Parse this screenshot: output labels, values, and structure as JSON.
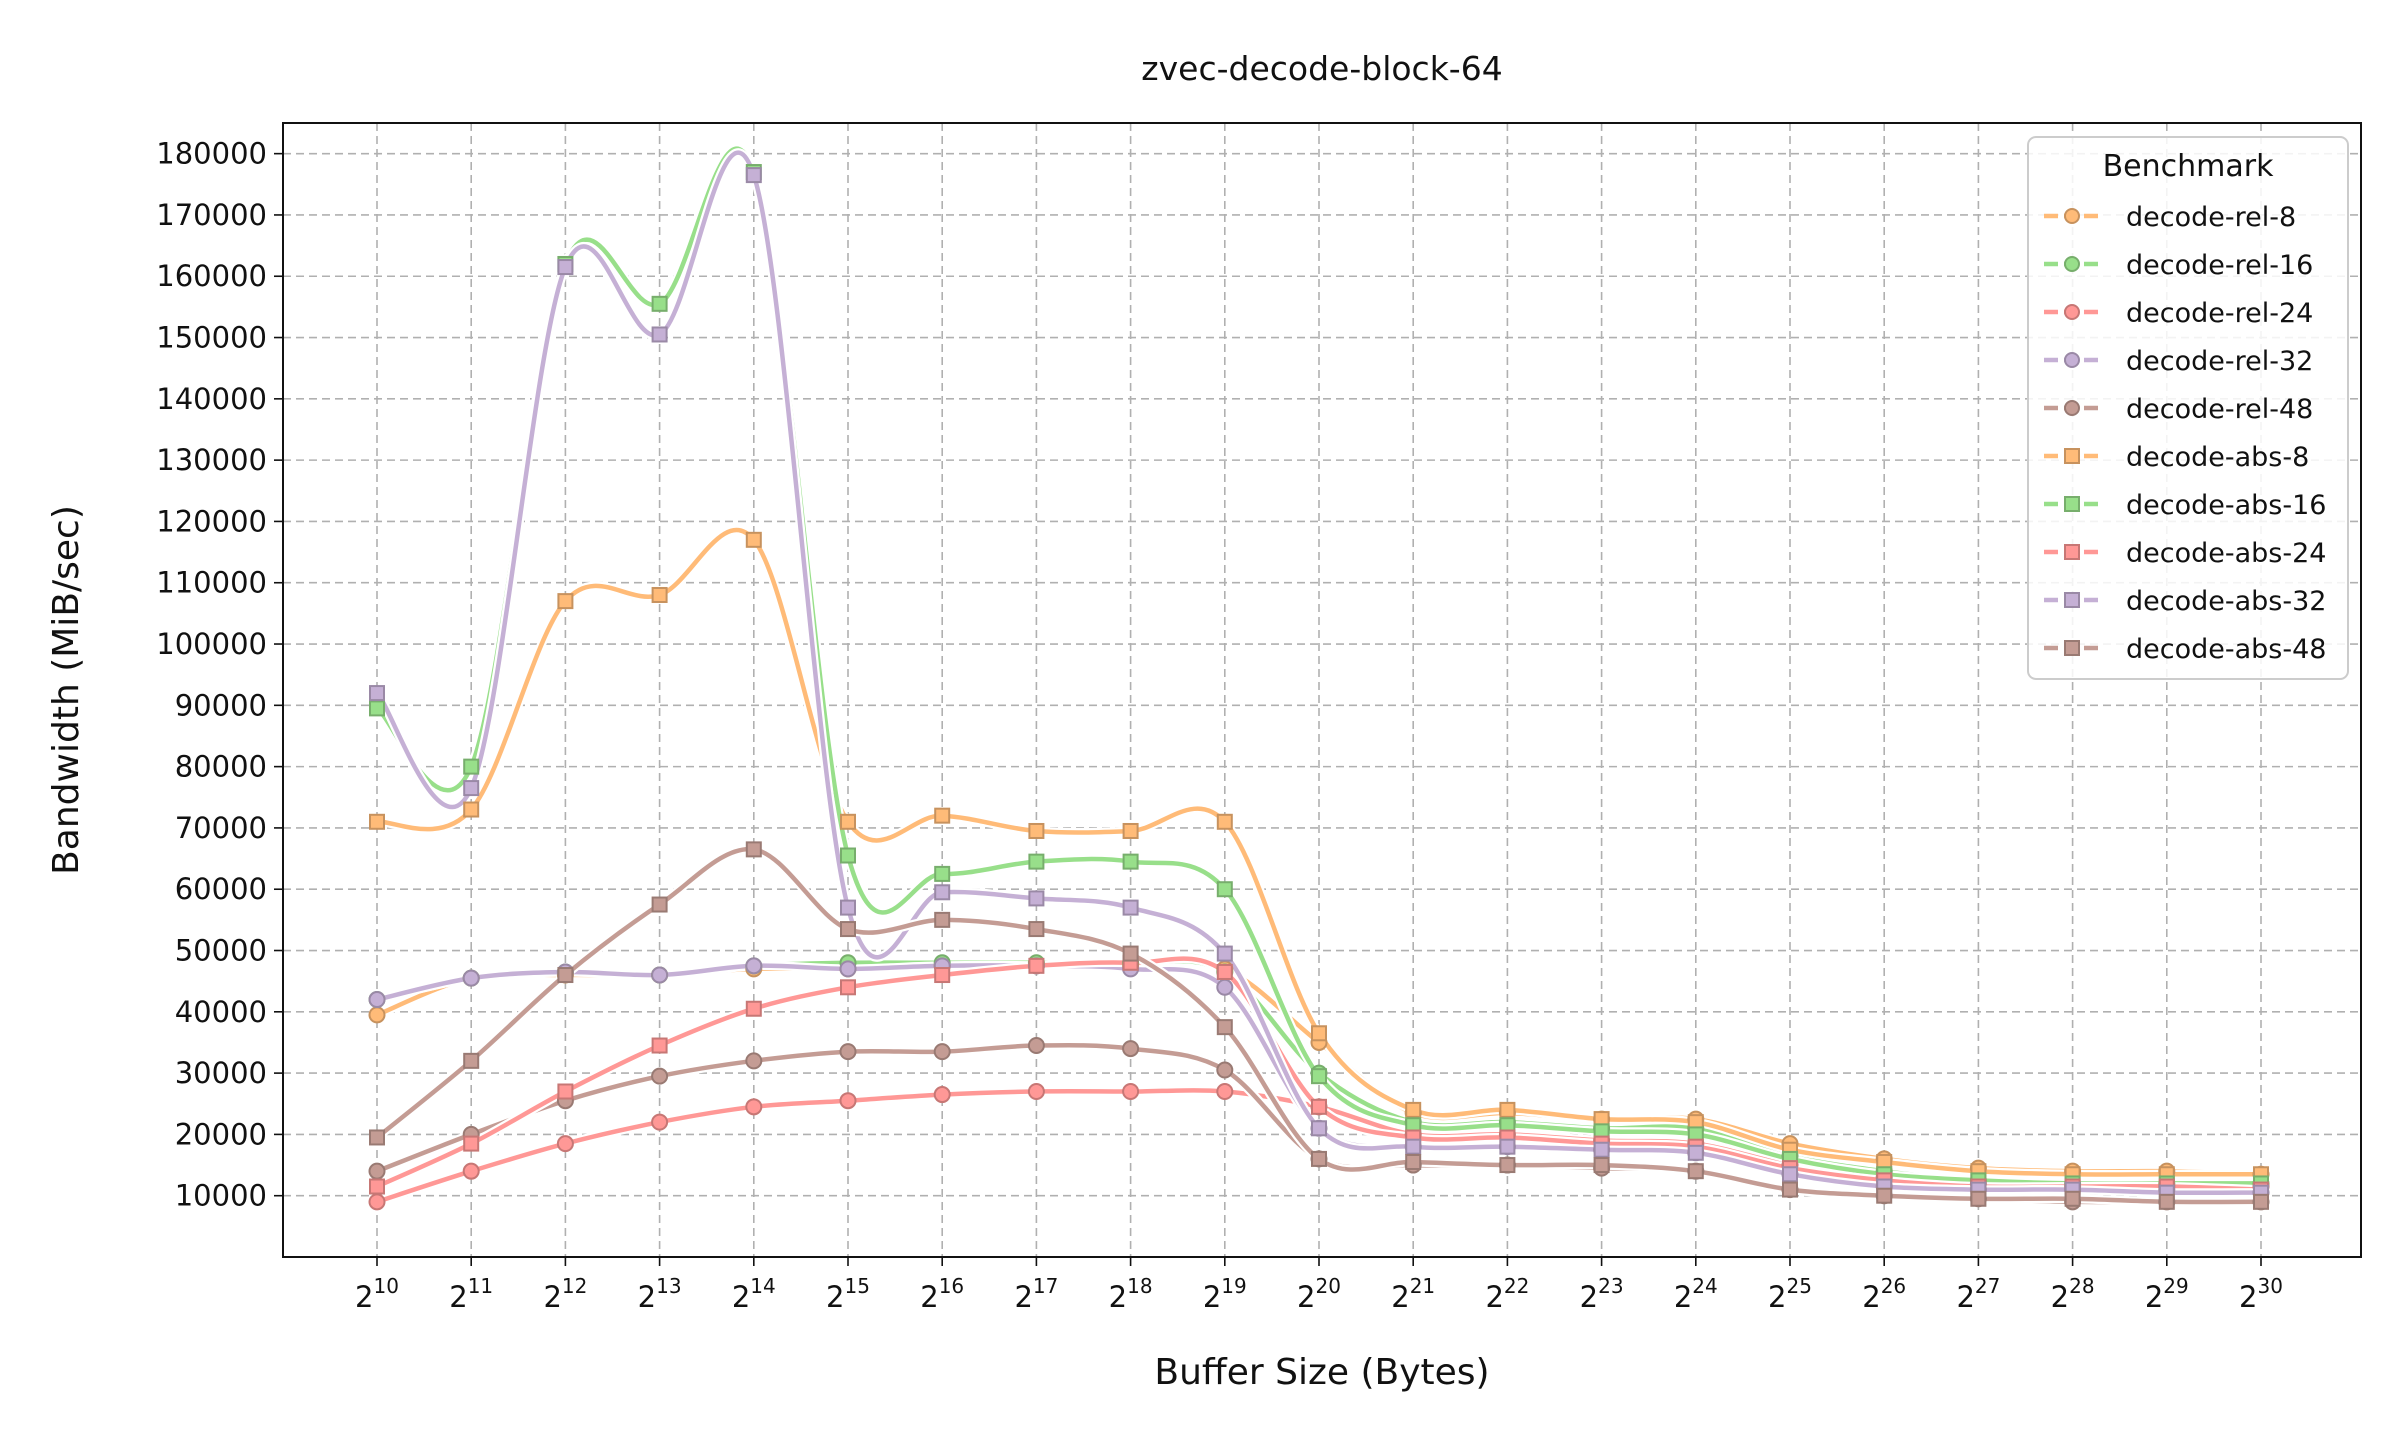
{
  "chart_data": {
    "type": "line",
    "title": "zvec-decode-block-64",
    "xlabel": "Buffer Size (Bytes)",
    "ylabel": "Bandwidth (MiB/sec)",
    "x_scale": "log2",
    "x": [
      1024,
      2048,
      4096,
      8192,
      16384,
      32768,
      65536,
      131072,
      262144,
      524288,
      1048576,
      2097152,
      4194304,
      8388608,
      16777216,
      33554432,
      67108864,
      134217728,
      268435456,
      536870912,
      1073741824
    ],
    "x_tick_base": "2",
    "x_tick_exponents": [
      "10",
      "11",
      "12",
      "13",
      "14",
      "15",
      "16",
      "17",
      "18",
      "19",
      "20",
      "21",
      "22",
      "23",
      "24",
      "25",
      "26",
      "27",
      "28",
      "29",
      "30"
    ],
    "ylim": [
      0,
      185000
    ],
    "y_ticks": [
      10000,
      20000,
      30000,
      40000,
      50000,
      60000,
      70000,
      80000,
      90000,
      100000,
      110000,
      120000,
      130000,
      140000,
      150000,
      160000,
      170000,
      180000
    ],
    "y_tick_labels": [
      "10000",
      "20000",
      "30000",
      "40000",
      "50000",
      "60000",
      "70000",
      "80000",
      "90000",
      "100000",
      "110000",
      "120000",
      "130000",
      "140000",
      "150000",
      "160000",
      "170000",
      "180000"
    ],
    "grid": true,
    "legend_title": "Benchmark",
    "legend_position": "top-right",
    "series": [
      {
        "name": "decode-rel-8",
        "marker": "circle",
        "color": "#ffbb78",
        "values": [
          39500,
          45500,
          46000,
          46000,
          47000,
          47000,
          47500,
          47500,
          47500,
          47000,
          35000,
          23500,
          23500,
          22500,
          22500,
          18500,
          16000,
          14500,
          14000,
          14000,
          13500
        ]
      },
      {
        "name": "decode-rel-16",
        "marker": "circle",
        "color": "#98df8a",
        "values": [
          42000,
          45500,
          46500,
          46000,
          47500,
          48000,
          48000,
          48000,
          48000,
          46500,
          30000,
          22000,
          22000,
          21000,
          21000,
          16500,
          14000,
          12500,
          12000,
          12000,
          12000
        ]
      },
      {
        "name": "decode-rel-24",
        "marker": "circle",
        "color": "#ff9896",
        "values": [
          9000,
          14000,
          18500,
          22000,
          24500,
          25500,
          26500,
          27000,
          27000,
          27000,
          24500,
          20000,
          20000,
          19000,
          18500,
          15000,
          13000,
          12000,
          11500,
          11500,
          11500
        ]
      },
      {
        "name": "decode-rel-32",
        "marker": "circle",
        "color": "#c5b0d5",
        "values": [
          42000,
          45500,
          46500,
          46000,
          47500,
          47000,
          47500,
          47500,
          47000,
          44000,
          21000,
          18000,
          18000,
          17500,
          17000,
          13500,
          11500,
          11000,
          11000,
          11000,
          10500
        ]
      },
      {
        "name": "decode-rel-48",
        "marker": "circle",
        "color": "#c49c94",
        "values": [
          14000,
          20000,
          25500,
          29500,
          32000,
          33500,
          33500,
          34500,
          34000,
          30500,
          16000,
          15000,
          15000,
          14500,
          14000,
          11000,
          10000,
          9500,
          9000,
          9000,
          9000
        ]
      },
      {
        "name": "decode-abs-8",
        "marker": "square",
        "color": "#ffbb78",
        "values": [
          71000,
          73000,
          107000,
          108000,
          117000,
          71000,
          72000,
          69500,
          69500,
          71000,
          36500,
          24000,
          24000,
          22500,
          22000,
          17500,
          15500,
          14000,
          13500,
          13500,
          13500
        ]
      },
      {
        "name": "decode-abs-16",
        "marker": "square",
        "color": "#98df8a",
        "values": [
          89500,
          80000,
          162000,
          155500,
          177000,
          65500,
          62500,
          64500,
          64500,
          60000,
          29500,
          21500,
          21500,
          20500,
          20000,
          16000,
          13500,
          12500,
          12000,
          12000,
          12000
        ]
      },
      {
        "name": "decode-abs-24",
        "marker": "square",
        "color": "#ff9896",
        "values": [
          11500,
          18500,
          27000,
          34500,
          40500,
          44000,
          46000,
          47500,
          48000,
          46500,
          24500,
          19500,
          19500,
          18500,
          18000,
          14500,
          12500,
          11500,
          11500,
          11500,
          11000
        ]
      },
      {
        "name": "decode-abs-32",
        "marker": "square",
        "color": "#c5b0d5",
        "values": [
          92000,
          76500,
          161500,
          150500,
          176500,
          57000,
          59500,
          58500,
          57000,
          49500,
          21000,
          18000,
          18000,
          17500,
          17000,
          13500,
          11500,
          11000,
          11000,
          10500,
          10500
        ]
      },
      {
        "name": "decode-abs-48",
        "marker": "square",
        "color": "#c49c94",
        "values": [
          19500,
          32000,
          46000,
          57500,
          66500,
          53500,
          55000,
          53500,
          49500,
          37500,
          16000,
          15500,
          15000,
          15000,
          14000,
          11000,
          10000,
          9500,
          9500,
          9000,
          9000
        ]
      }
    ]
  }
}
